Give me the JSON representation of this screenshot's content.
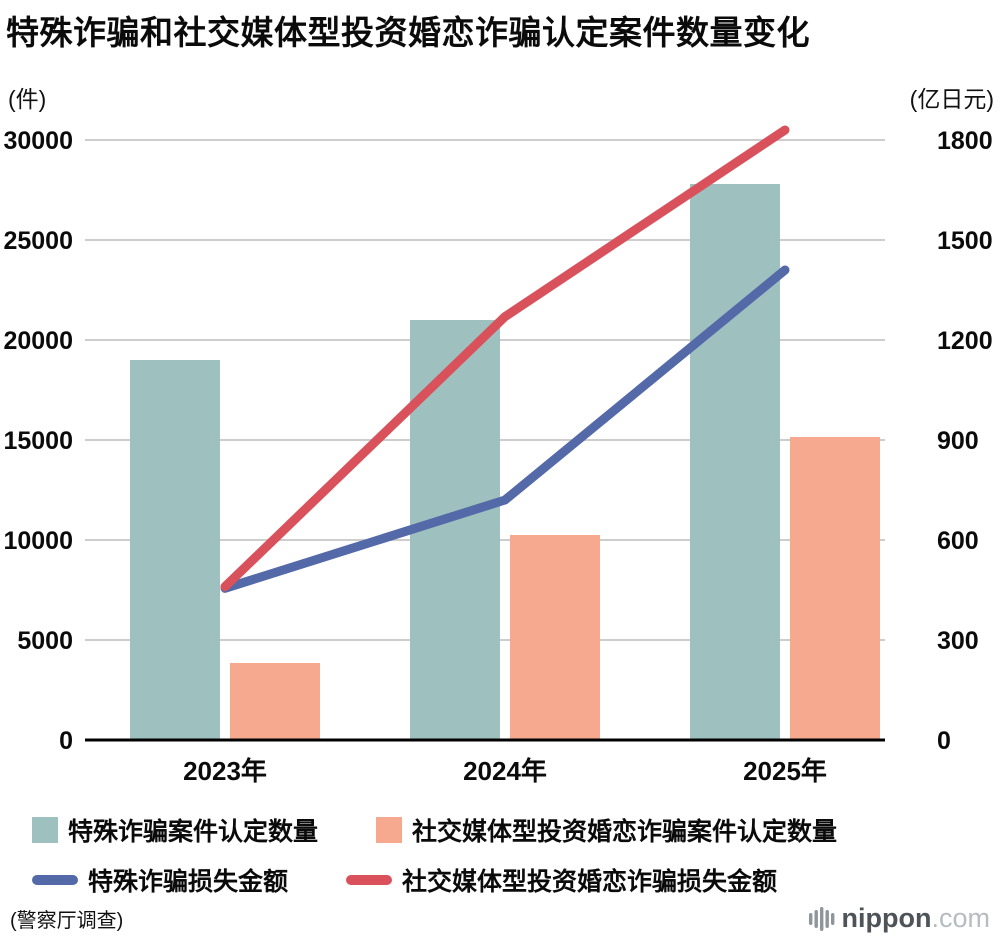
{
  "title": "特殊诈骗和社交媒体型投资婚恋诈骗认定案件数量变化",
  "units": {
    "left": "(件)",
    "right": "(亿日元)"
  },
  "source": "(警察厅调查)",
  "logo": {
    "brand": "nippon",
    "tld": ".com"
  },
  "colors": {
    "bar_special_fraud": "#9ec1c0",
    "bar_sns_fraud": "#f6a98f",
    "line_special_fraud": "#5469a8",
    "line_sns_fraud": "#d9515a",
    "grid": "#cdcdcd",
    "axis": "#000000"
  },
  "chart_data": {
    "type": "bar+line",
    "title": "特殊诈骗和社交媒体型投资婚恋诈骗认定案件数量变化",
    "categories": [
      "2023年",
      "2024年",
      "2025年"
    ],
    "left_axis": {
      "label": "件",
      "min": 0,
      "max": 30000,
      "ticks": [
        0,
        5000,
        10000,
        15000,
        20000,
        25000,
        30000
      ]
    },
    "right_axis": {
      "label": "亿日元",
      "min": 0,
      "max": 1800,
      "ticks": [
        0,
        300,
        600,
        900,
        1200,
        1500,
        1800
      ]
    },
    "grid": true,
    "legend_position": "bottom",
    "series": [
      {
        "name": "特殊诈骗案件认定数量",
        "type": "bar",
        "axis": "left",
        "color": "#9ec1c0",
        "values": [
          19000,
          21000,
          27800
        ]
      },
      {
        "name": "社交媒体型投资婚恋诈骗案件认定数量",
        "type": "bar",
        "axis": "left",
        "color": "#f6a98f",
        "values": [
          3850,
          10250,
          15150
        ]
      },
      {
        "name": "特殊诈骗损失金额",
        "type": "line",
        "axis": "right",
        "color": "#5469a8",
        "values": [
          455,
          720,
          1410
        ]
      },
      {
        "name": "社交媒体型投资婚恋诈骗损失金额",
        "type": "line",
        "axis": "right",
        "color": "#d9515a",
        "values": [
          460,
          1270,
          1830
        ]
      }
    ]
  }
}
